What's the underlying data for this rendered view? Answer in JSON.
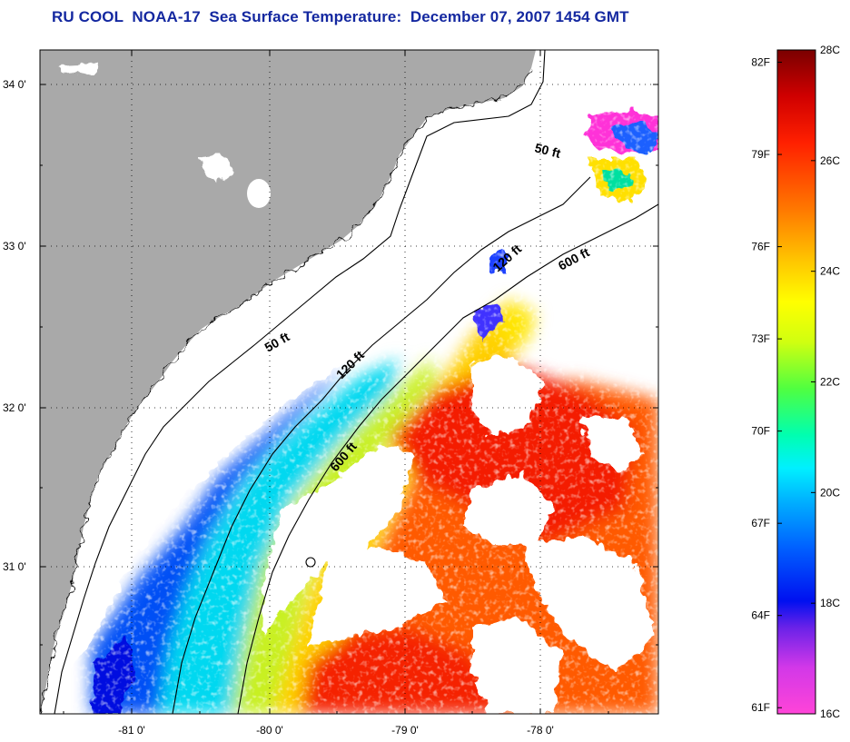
{
  "title": "RU COOL  NOAA-17  Sea Surface Temperature:  December 07, 2007 1454 GMT",
  "map": {
    "x_ticks": [
      "-81 0'",
      "-80 0'",
      "-79 0'",
      "-78 0'"
    ],
    "y_ticks": [
      "34 0'",
      "33 0'",
      "32 0'",
      "31 0'"
    ],
    "contours": [
      {
        "label": "50 ft",
        "name": "contour-50ft-north"
      },
      {
        "label": "50 ft",
        "name": "contour-50ft-south"
      },
      {
        "label": "120 ft",
        "name": "contour-120ft-north"
      },
      {
        "label": "120 ft",
        "name": "contour-120ft-south"
      },
      {
        "label": "600 ft",
        "name": "contour-600ft-north"
      },
      {
        "label": "600 ft",
        "name": "contour-600ft-south"
      }
    ],
    "colors": {
      "land": "#a9a9a9",
      "cloud": "#ffffff",
      "coast": "#000000"
    }
  },
  "colorbar": {
    "min_c": 16,
    "max_c": 28,
    "min_f": 61,
    "max_f": 82,
    "fahrenheit_labels": [
      "82F",
      "79F",
      "76F",
      "73F",
      "70F",
      "67F",
      "64F",
      "61F"
    ],
    "celsius_labels": [
      "28C",
      "26C",
      "24C",
      "22C",
      "20C",
      "18C",
      "16C"
    ]
  }
}
